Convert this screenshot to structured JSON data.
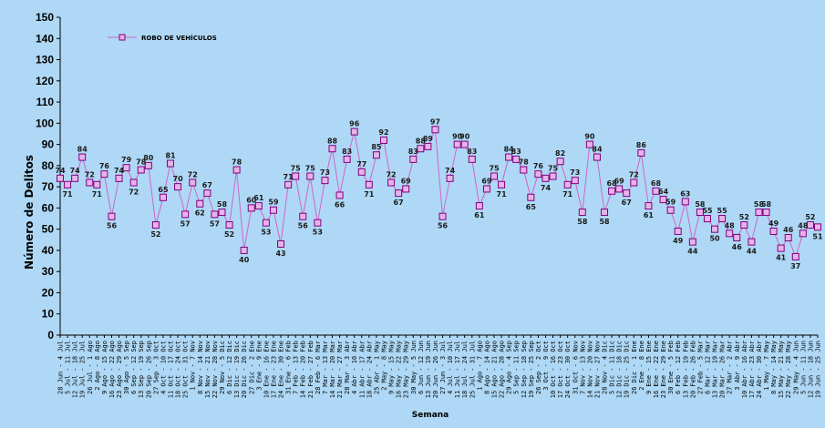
{
  "chart_data": {
    "type": "line",
    "ylabel": "Número de Delitos",
    "xlabel": "Semana",
    "ylim": [
      0,
      150
    ],
    "yticks": [
      "0",
      "10",
      "20",
      "30",
      "40",
      "50",
      "60",
      "70",
      "80",
      "90",
      "100",
      "110",
      "120",
      "130",
      "140",
      "150"
    ],
    "grid": false,
    "legend_position": "top-left",
    "colors": {
      "background": "#aed8f5",
      "line": "#cc66cc",
      "marker_fill": "#e6b3e6",
      "marker_stroke": "#800080",
      "axis": "#000000"
    },
    "series": [
      {
        "name": "ROBO DE VEHÍCULOS",
        "values": [
          74,
          71,
          74,
          84,
          72,
          71,
          76,
          56,
          74,
          79,
          72,
          78,
          80,
          52,
          65,
          81,
          70,
          57,
          72,
          62,
          67,
          57,
          58,
          52,
          78,
          40,
          60,
          61,
          53,
          59,
          43,
          71,
          75,
          56,
          75,
          53,
          73,
          88,
          66,
          83,
          96,
          77,
          71,
          85,
          92,
          72,
          67,
          69,
          83,
          88,
          89,
          97,
          56,
          74,
          90,
          90,
          83,
          61,
          69,
          75,
          71,
          84,
          83,
          78,
          65,
          76,
          74,
          75,
          82,
          71,
          73,
          58,
          90,
          84,
          58,
          68,
          69,
          67,
          72,
          86,
          61,
          68,
          64,
          59,
          49,
          63,
          44,
          58,
          55,
          50,
          55,
          48,
          46,
          52,
          44,
          58,
          58,
          49,
          41,
          46,
          37,
          48,
          52,
          51
        ],
        "labels": [
          "74",
          "71",
          "74",
          "84",
          "72",
          "71",
          "76",
          "56",
          "74",
          "79",
          "72",
          "78",
          "80",
          "52",
          "65",
          "81",
          "70",
          "57",
          "72",
          "62",
          "67",
          "57",
          "58",
          "52",
          "78",
          "40",
          "60",
          "61",
          "53",
          "59",
          "43",
          "71",
          "75",
          "56",
          "75",
          "53",
          "73",
          "88",
          "66",
          "83",
          "96",
          "77",
          "71",
          "85",
          "92",
          "72",
          "67",
          "69",
          "83",
          "88",
          "89",
          "97",
          "56",
          "74",
          "90",
          "90",
          "83",
          "61",
          "69",
          "75",
          "71",
          "84",
          "83",
          "78",
          "65",
          "76",
          "74",
          "75",
          "82",
          "71",
          "73",
          "58",
          "90",
          "84",
          "58",
          "68",
          "69",
          "67",
          "72",
          "86",
          "61",
          "68",
          "64",
          "59",
          "49",
          "63",
          "44",
          "58",
          "55",
          "50",
          "55",
          "48",
          "46",
          "52",
          "44",
          "58",
          "58",
          "49",
          "41",
          "46",
          "37",
          "48",
          "52",
          "51"
        ]
      }
    ],
    "categories": [
      "28 Jun - 4 Jul",
      "5 Jul - 11 Jul",
      "12 Jul - 18 Jul",
      "19 Jul - 25 Jul",
      "26 Jul - 1 Ago",
      "2 Ago - 8 Ago",
      "9 Ago - 15 Ago",
      "16 Ago - 22 Ago",
      "23 Ago - 29 Ago",
      "30 Ago - 5 Sep",
      "6 Sep - 12 Sep",
      "13 Sep - 19 Sep",
      "20 Sep - 26 Sep",
      "27 Sep - 3 Oct",
      "4 Oct - 10 Oct",
      "11 Oct - 17 Oct",
      "18 Oct - 24 Oct",
      "25 Oct - 31 Oct",
      "1 Nov - 7 Nov",
      "8 Nov - 14 Nov",
      "15 Nov - 21 Nov",
      "22 Nov - 28 Nov",
      "29 Nov - 5 Dic",
      "6 Dic - 12 Dic",
      "13 Dic - 19 Dic",
      "20 Dic - 26 Dic",
      "27 Dic - 2 Ene",
      "3 Ene - 9 Ene",
      "10 Ene - 16 Ene",
      "17 Ene - 23 Ene",
      "24 Ene - 30 Ene",
      "31 Ene - 6 Feb",
      "7 Feb - 13 Feb",
      "14 Feb - 20 Feb",
      "21 Feb - 27 Feb",
      "28 Feb - 6 Mar",
      "7 Mar - 13 Mar",
      "14 Mar - 20 Mar",
      "21 Mar - 27 Mar",
      "28 Mar - 3 Abr",
      "4 Abr - 10 Abr",
      "11 Abr - 17 Abr",
      "18 Abr - 24 Abr",
      "25 Abr - 1 May",
      "2 May - 8 May",
      "9 May - 15 May",
      "16 May - 22 May",
      "23 May - 29 May",
      "30 May - 5 Jun",
      "6 Jun - 12 Jun",
      "13 Jun - 19 Jun",
      "20 Jun - 26 Jun",
      "27 Jun - 3 Jul",
      "4 Jul - 10 Jul",
      "11 Jul - 17 Jul",
      "18 Jul - 24 Jul",
      "25 Jul - 31 Jul",
      "1 Ago - 7 Ago",
      "8 Ago - 14 Ago",
      "15 Ago - 21 Ago",
      "22 Ago - 28 Ago",
      "29 Ago - 4 Sep",
      "5 Sep - 11 Sep",
      "12 Sep - 18 Sep",
      "19 Sep - 25 Sep",
      "26 Sep - 2 Oct",
      "3 Oct - 9 Oct",
      "10 Oct - 16 Oct",
      "17 Oct - 23 Oct",
      "24 Oct - 30 Oct",
      "31 Oct - 6 Nov",
      "7 Nov - 13 Nov",
      "14 Nov - 20 Nov",
      "21 Nov - 27 Nov",
      "28 Nov - 4 Dic",
      "5 Dic - 11 Dic",
      "12 Dic - 18 Dic",
      "19 Dic - 25 Dic",
      "26 Dic - 1 Ene",
      "2 Ene - 8 Ene",
      "9 Ene - 15 Ene",
      "16 Ene - 22 Ene",
      "23 Ene - 29 Ene",
      "30 Ene - 5 Feb",
      "6 Feb - 12 Feb",
      "13 Feb - 19 Feb",
      "20 Feb - 26 Feb",
      "27 Feb - 5 Mar",
      "6 Mar - 12 Mar",
      "13 Mar - 19 Mar",
      "20 Mar - 26 Mar",
      "27 Mar - 2 Abr",
      "3 Abr - 9 Abr",
      "10 Abr - 16 Abr",
      "17 Abr - 23 Abr",
      "24 Abr - 30 Abr",
      "1 May - 7 May",
      "8 May - 14 May",
      "15 May - 21 May",
      "22 May - 28 May",
      "29 May - 4 Jun",
      "5 Jun - 11 Jun",
      "12 Jun - 18 Jun",
      "19 Jun - 25 Jun"
    ]
  }
}
